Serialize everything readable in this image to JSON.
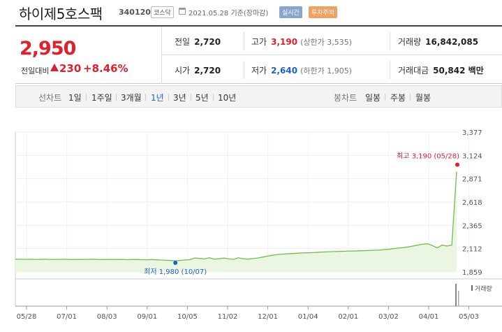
{
  "header": {
    "name": "하이제5호스팩",
    "code": "340120",
    "market": "코스닥",
    "date": "2021.05.28",
    "basis": "기준(장마감)",
    "live_badge": "실시간",
    "warning_badge": "투자주의"
  },
  "quote": {
    "price": "2,950",
    "change_label": "전일대비",
    "change_amount": "230",
    "change_percent": "+8.46%",
    "prev_close": {
      "label": "전일",
      "value": "2,720"
    },
    "high": {
      "label": "고가",
      "value": "3,190",
      "sub": "(상한가 3,535)"
    },
    "volume": {
      "label": "거래량",
      "value": "16,842,085"
    },
    "open": {
      "label": "시가",
      "value": "2,720"
    },
    "low": {
      "label": "저가",
      "value": "2,640",
      "sub": "(하한가 1,905)"
    },
    "trade_value": {
      "label": "거래대금",
      "value": "50,842 백만"
    }
  },
  "tabs": {
    "line_label": "선차트",
    "line_periods": [
      "1일",
      "1주일",
      "3개월",
      "1년",
      "3년",
      "5년",
      "10년"
    ],
    "active_period": "1년",
    "candle_label": "봉차트",
    "candle_periods": [
      "일봉",
      "주봉",
      "월봉"
    ]
  },
  "chart_data": {
    "type": "line",
    "ylim": [
      1859,
      3377
    ],
    "y_ticks": [
      "3,377",
      "3,124",
      "2,871",
      "2,618",
      "2,365",
      "2,112",
      "1,859"
    ],
    "x_ticks": [
      "05/28",
      "07/01",
      "08/03",
      "09/01",
      "10/05",
      "11/02",
      "12/01",
      "01/04",
      "02/01",
      "03/02",
      "04/01",
      "05/03"
    ],
    "series": [
      {
        "values": [
          1997,
          1996,
          1995,
          1996,
          1995,
          1994,
          1996,
          1995,
          1994,
          1995,
          1996,
          1994,
          1993,
          1995,
          1994,
          1995,
          1996,
          1994,
          1993,
          1994,
          1995,
          1993,
          1994,
          1992,
          1993,
          1994,
          1992,
          1991,
          1993,
          1990,
          1988,
          1985,
          1983,
          1980,
          1984,
          1988,
          1992,
          2010,
          2005,
          2000,
          2012,
          1998,
          2002,
          2010,
          2000,
          1995,
          2012,
          2002,
          1998,
          2004,
          2010,
          2020,
          2030,
          2040,
          2048,
          2052,
          2055,
          2058,
          2062,
          2065,
          2066,
          2068,
          2070,
          2074,
          2076,
          2078,
          2080,
          2082,
          2084,
          2085,
          2086,
          2088,
          2090,
          2092,
          2094,
          2096,
          2100,
          2105,
          2112,
          2118,
          2122,
          2130,
          2140,
          2150,
          2160,
          2165,
          2145,
          2120,
          2150,
          2140,
          2150,
          2950
        ]
      }
    ],
    "high_label": "최고 3,190 (05/28)",
    "high_value": 3190,
    "low_label": "최저 1,980 (10/07)",
    "low_value": 1980,
    "volume_label": "거래량",
    "colors": {
      "line": "#6fc04a",
      "fill": "#eaf6e2",
      "high": "#e0202c",
      "low": "#1d62c9"
    }
  }
}
